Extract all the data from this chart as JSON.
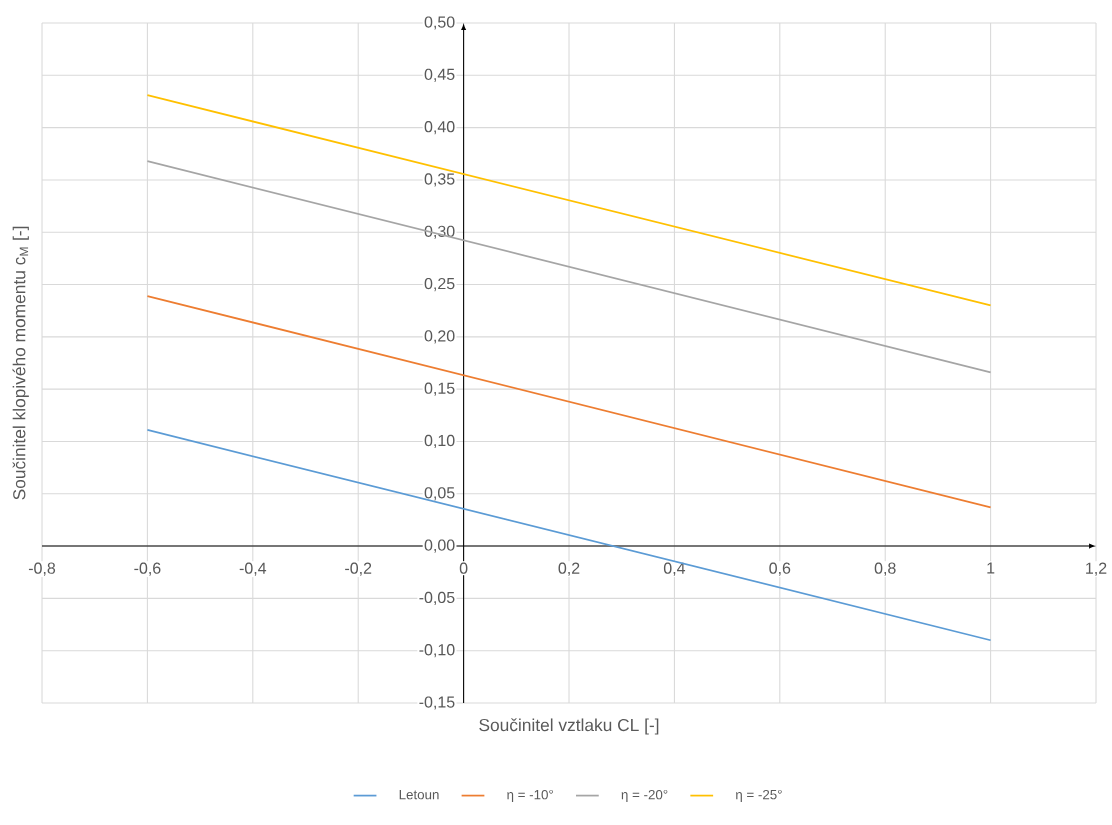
{
  "chart_data": {
    "type": "line",
    "xlabel": "Součinitel vztlaku CL [-]",
    "ylabel": "Součinitel klopivého momentu c$_{M}$ [-]",
    "x": [
      -0.6,
      1
    ],
    "series": [
      {
        "name": "Letoun",
        "color": "#5b9bd5",
        "values": [
          0.111,
          -0.09
        ]
      },
      {
        "name": "η = -10°",
        "color": "#ed7d31",
        "values": [
          0.239,
          0.037
        ]
      },
      {
        "name": "η = -20°",
        "color": "#a5a5a5",
        "values": [
          0.368,
          0.166
        ]
      },
      {
        "name": "η = -25°",
        "color": "#ffc000",
        "values": [
          0.431,
          0.23
        ]
      }
    ],
    "xlim": [
      -0.8,
      1.2
    ],
    "ylim": [
      -0.15,
      0.5
    ],
    "xticks": [
      {
        "value": -0.8,
        "label": "-0,8"
      },
      {
        "value": -0.6,
        "label": "-0,6"
      },
      {
        "value": -0.4,
        "label": "-0,4"
      },
      {
        "value": -0.2,
        "label": "-0,2"
      },
      0,
      {
        "value": 0.2,
        "label": "0,2"
      },
      {
        "value": 0.4,
        "label": "0,4"
      },
      {
        "value": 0.6,
        "label": "0,6"
      },
      {
        "value": 0.8,
        "label": "0,8"
      },
      1,
      {
        "value": 1.2,
        "label": "1,2"
      }
    ],
    "yticks": [
      {
        "value": -0.15,
        "label": "-0,15"
      },
      {
        "value": -0.1,
        "label": "-0,10"
      },
      {
        "value": -0.05,
        "label": "-0,05"
      },
      {
        "value": 0,
        "label": "0,00"
      },
      {
        "value": 0.05,
        "label": "0,05"
      },
      {
        "value": 0.1,
        "label": "0,10"
      },
      {
        "value": 0.15,
        "label": "0,15"
      },
      {
        "value": 0.2,
        "label": "0,20"
      },
      {
        "value": 0.25,
        "label": "0,25"
      },
      {
        "value": 0.3,
        "label": "0,30"
      },
      {
        "value": 0.35,
        "label": "0,35"
      },
      {
        "value": 0.4,
        "label": "0,40"
      },
      {
        "value": 0.45,
        "label": "0,45"
      },
      {
        "value": 0.5,
        "label": "0,50"
      }
    ],
    "grid": true,
    "legend": "bottom"
  }
}
